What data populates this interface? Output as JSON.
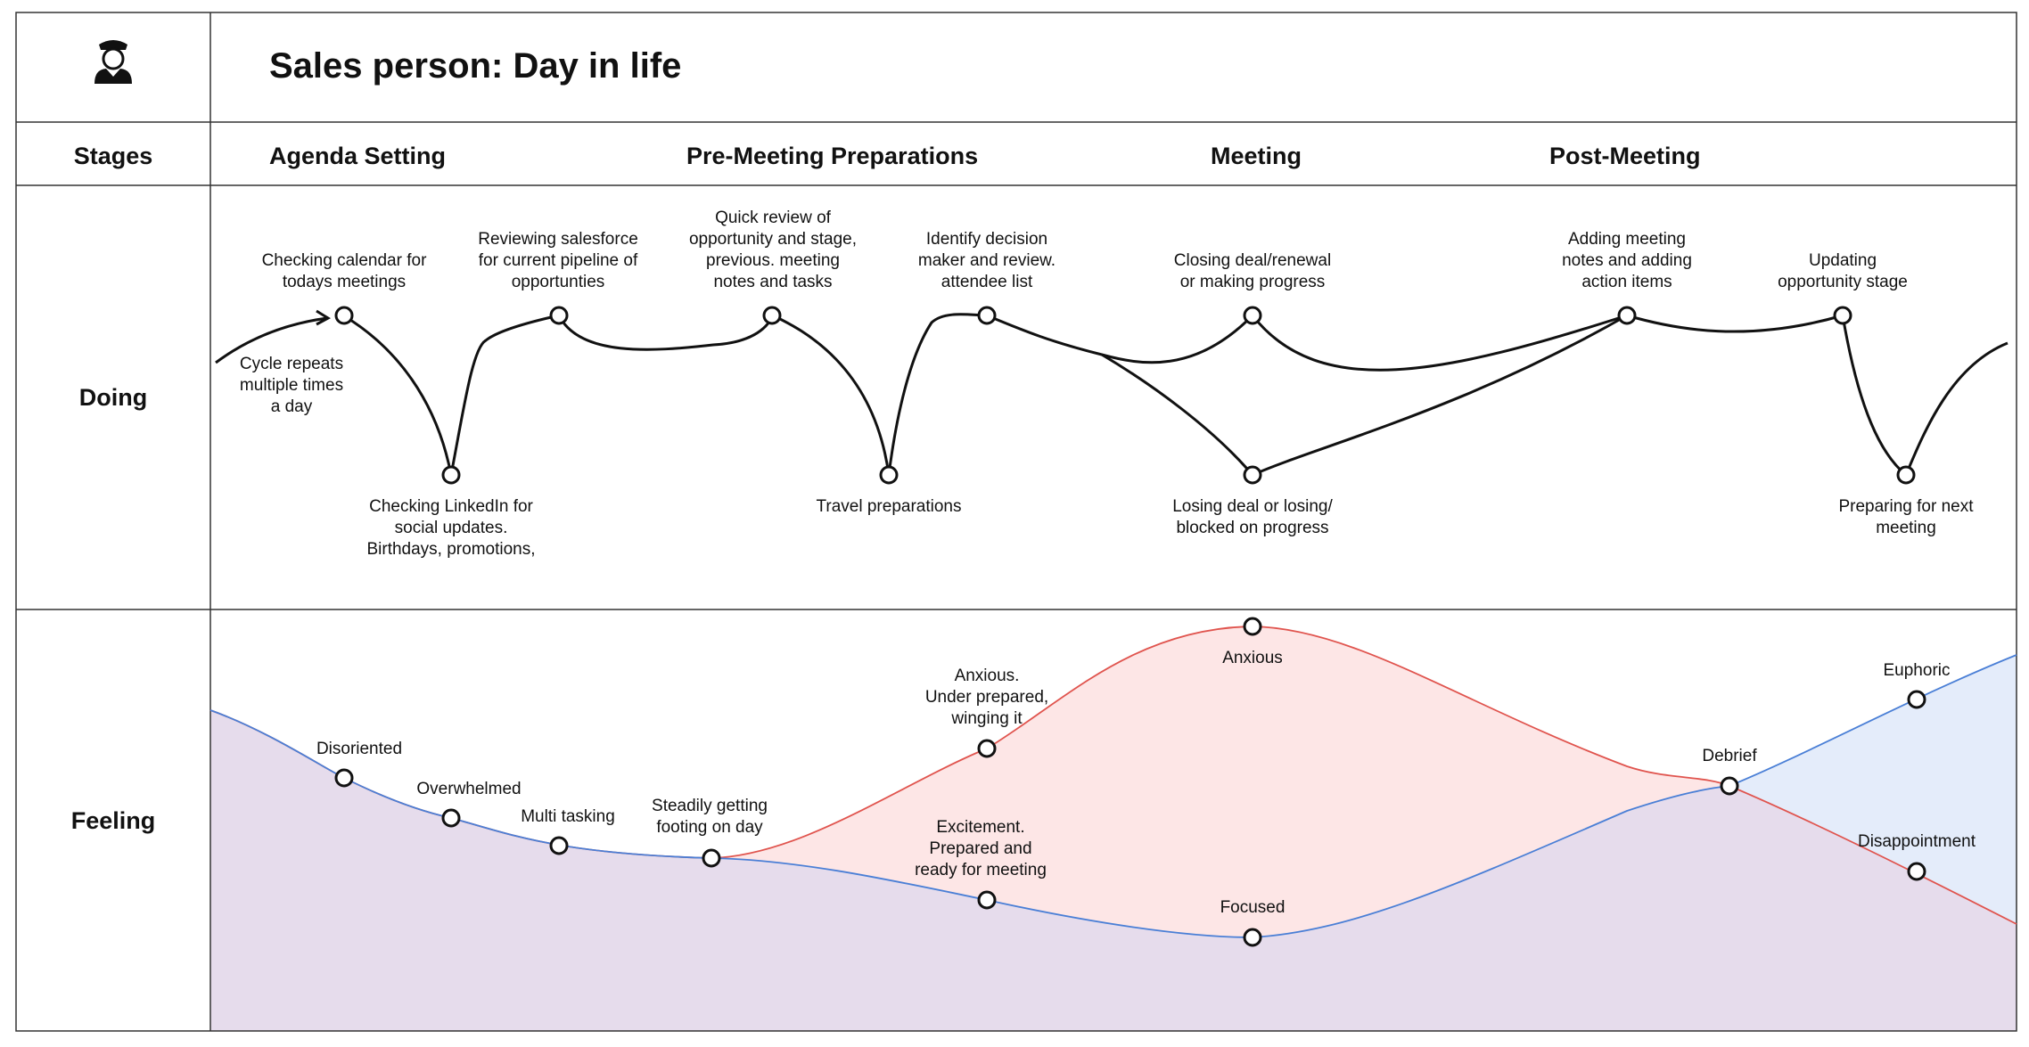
{
  "title": "Sales person: Day in life",
  "icon": "salesperson-avatar-icon",
  "rows": {
    "stages": "Stages",
    "doing": "Doing",
    "feeling": "Feeling"
  },
  "stages": [
    "Agenda Setting",
    "Pre-Meeting Preparations",
    "Meeting",
    "Post-Meeting"
  ],
  "doing": {
    "cycle_note": "Cycle repeats\nmultiple times\na day",
    "steps": [
      "Checking calendar for\ntodays meetings",
      "Checking LinkedIn for\nsocial updates.\nBirthdays, promotions,",
      "Reviewing salesforce\nfor current pipeline of\nopportunties",
      "Quick review of\nopportunity and stage,\nprevious. meeting\nnotes and tasks",
      "Travel preparations",
      "Identify decision\nmaker and review.\nattendee list",
      "Closing deal/renewal\nor making progress",
      "Losing deal or losing/\nblocked on progress",
      "Adding meeting\nnotes and adding\naction items",
      "Updating\nopportunity stage",
      "Preparing for next\nmeeting"
    ]
  },
  "feeling": {
    "points": [
      "Disoriented",
      "Overwhelmed",
      "Multi tasking",
      "Steadily getting\nfooting on day",
      "Anxious.\nUnder prepared,\nwinging it",
      "Excitement.\nPrepared and\nready for meeting",
      "Anxious",
      "Focused",
      "Debrief",
      "Euphoric",
      "Disappointment"
    ]
  },
  "colors": {
    "line": "#111111",
    "grid": "#333333",
    "negative_stroke": "#e0544e",
    "negative_fill": "#fde6e6",
    "positive_stroke": "#4a7fd6",
    "positive_fill": "#e4ecfa",
    "overlap_fill": "#e6dcec"
  }
}
